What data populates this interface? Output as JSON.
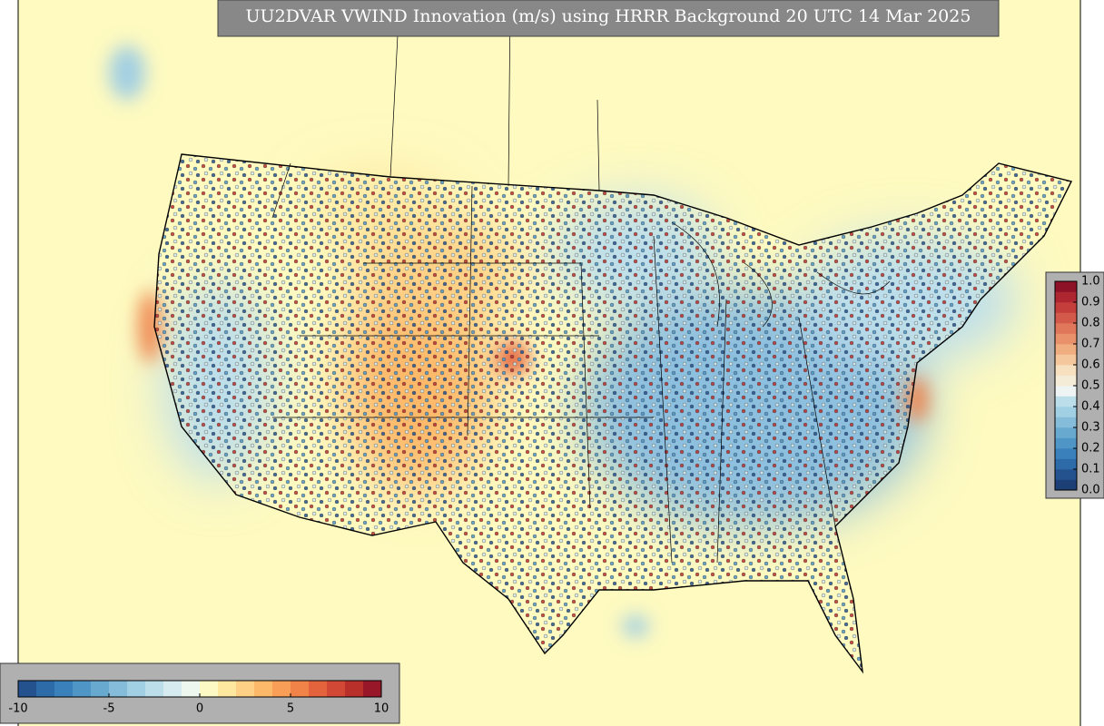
{
  "title": "UU2DVAR VWIND Innovation (m/s) using HRRR Background 20 UTC 14 Mar 2025",
  "innovation_colorbar": {
    "lim": [
      -10,
      10
    ],
    "ticks": [
      -10,
      -5,
      0,
      5,
      10
    ],
    "colors": [
      "#24528f",
      "#2c6aa8",
      "#3a80ba",
      "#4f95c6",
      "#67a9cf",
      "#84bcda",
      "#a1cfe3",
      "#bcdeeb",
      "#d5ebf0",
      "#eef6f0",
      "#fdf9c4",
      "#fee8a0",
      "#fdd085",
      "#fdb96a",
      "#f99e56",
      "#f18248",
      "#e4633c",
      "#d14834",
      "#b9302b",
      "#98182a"
    ]
  },
  "fraction_colorbar": {
    "lim": [
      0,
      1
    ],
    "ticks": [
      {
        "value": 0,
        "label": "0.0"
      },
      0.1,
      0.2,
      0.3,
      0.4,
      0.5,
      0.6,
      0.7,
      0.8,
      0.9,
      {
        "value": 1,
        "label": "1.0"
      }
    ],
    "colors": [
      "#1c3f75",
      "#24528f",
      "#2c6aa8",
      "#3a80ba",
      "#4f95c6",
      "#67a9cf",
      "#84bcda",
      "#a1cfe3",
      "#bcdeeb",
      "#eef3f3",
      "#f5ecd8",
      "#f7e0bf",
      "#f4c89c",
      "#efad80",
      "#e9916a",
      "#e0765a",
      "#d35a4b",
      "#c43e3c",
      "#ae2630",
      "#8e1227"
    ]
  }
}
